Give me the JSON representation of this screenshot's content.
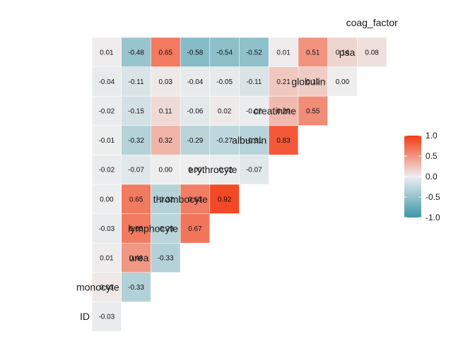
{
  "chart_data": {
    "type": "heatmap",
    "variables": [
      "ID",
      "monocyte",
      "urea",
      "lymphocyte",
      "thrombocyte",
      "erythrocyte",
      "albumin",
      "creatinine",
      "globulin",
      "psa",
      "coag_factor"
    ],
    "matrix": [
      [
        -0.03
      ],
      [
        0.03,
        -0.33
      ],
      [
        0.01,
        0.48,
        -0.33
      ],
      [
        -0.03,
        0.65,
        -0.29,
        0.67
      ],
      [
        0.0,
        0.65,
        -0.32,
        0.63,
        0.92
      ],
      [
        -0.02,
        -0.07,
        0.0,
        0.0,
        -0.02,
        -0.07
      ],
      [
        -0.01,
        -0.32,
        0.32,
        -0.29,
        -0.27,
        -0.31,
        0.83
      ],
      [
        -0.02,
        -0.15,
        0.11,
        -0.06,
        0.02,
        -0.02,
        0.29,
        0.55
      ],
      [
        -0.04,
        -0.11,
        0.03,
        -0.04,
        -0.05,
        -0.11,
        0.21,
        0.19,
        0.0
      ],
      [
        0.01,
        -0.48,
        0.65,
        -0.58,
        -0.54,
        -0.52,
        0.01,
        0.51,
        0.14,
        0.08
      ]
    ],
    "colors": {
      "low": "#3A97AA",
      "mid": "#EEEEEE",
      "high": "#F43B14"
    },
    "legend": {
      "ticks": [
        "1.0",
        "0.5",
        "0.0",
        "-0.5",
        "-1.0"
      ],
      "values": [
        1.0,
        0.5,
        0.0,
        -0.5,
        -1.0
      ],
      "range": [
        -1,
        1
      ],
      "placement": "right"
    }
  }
}
